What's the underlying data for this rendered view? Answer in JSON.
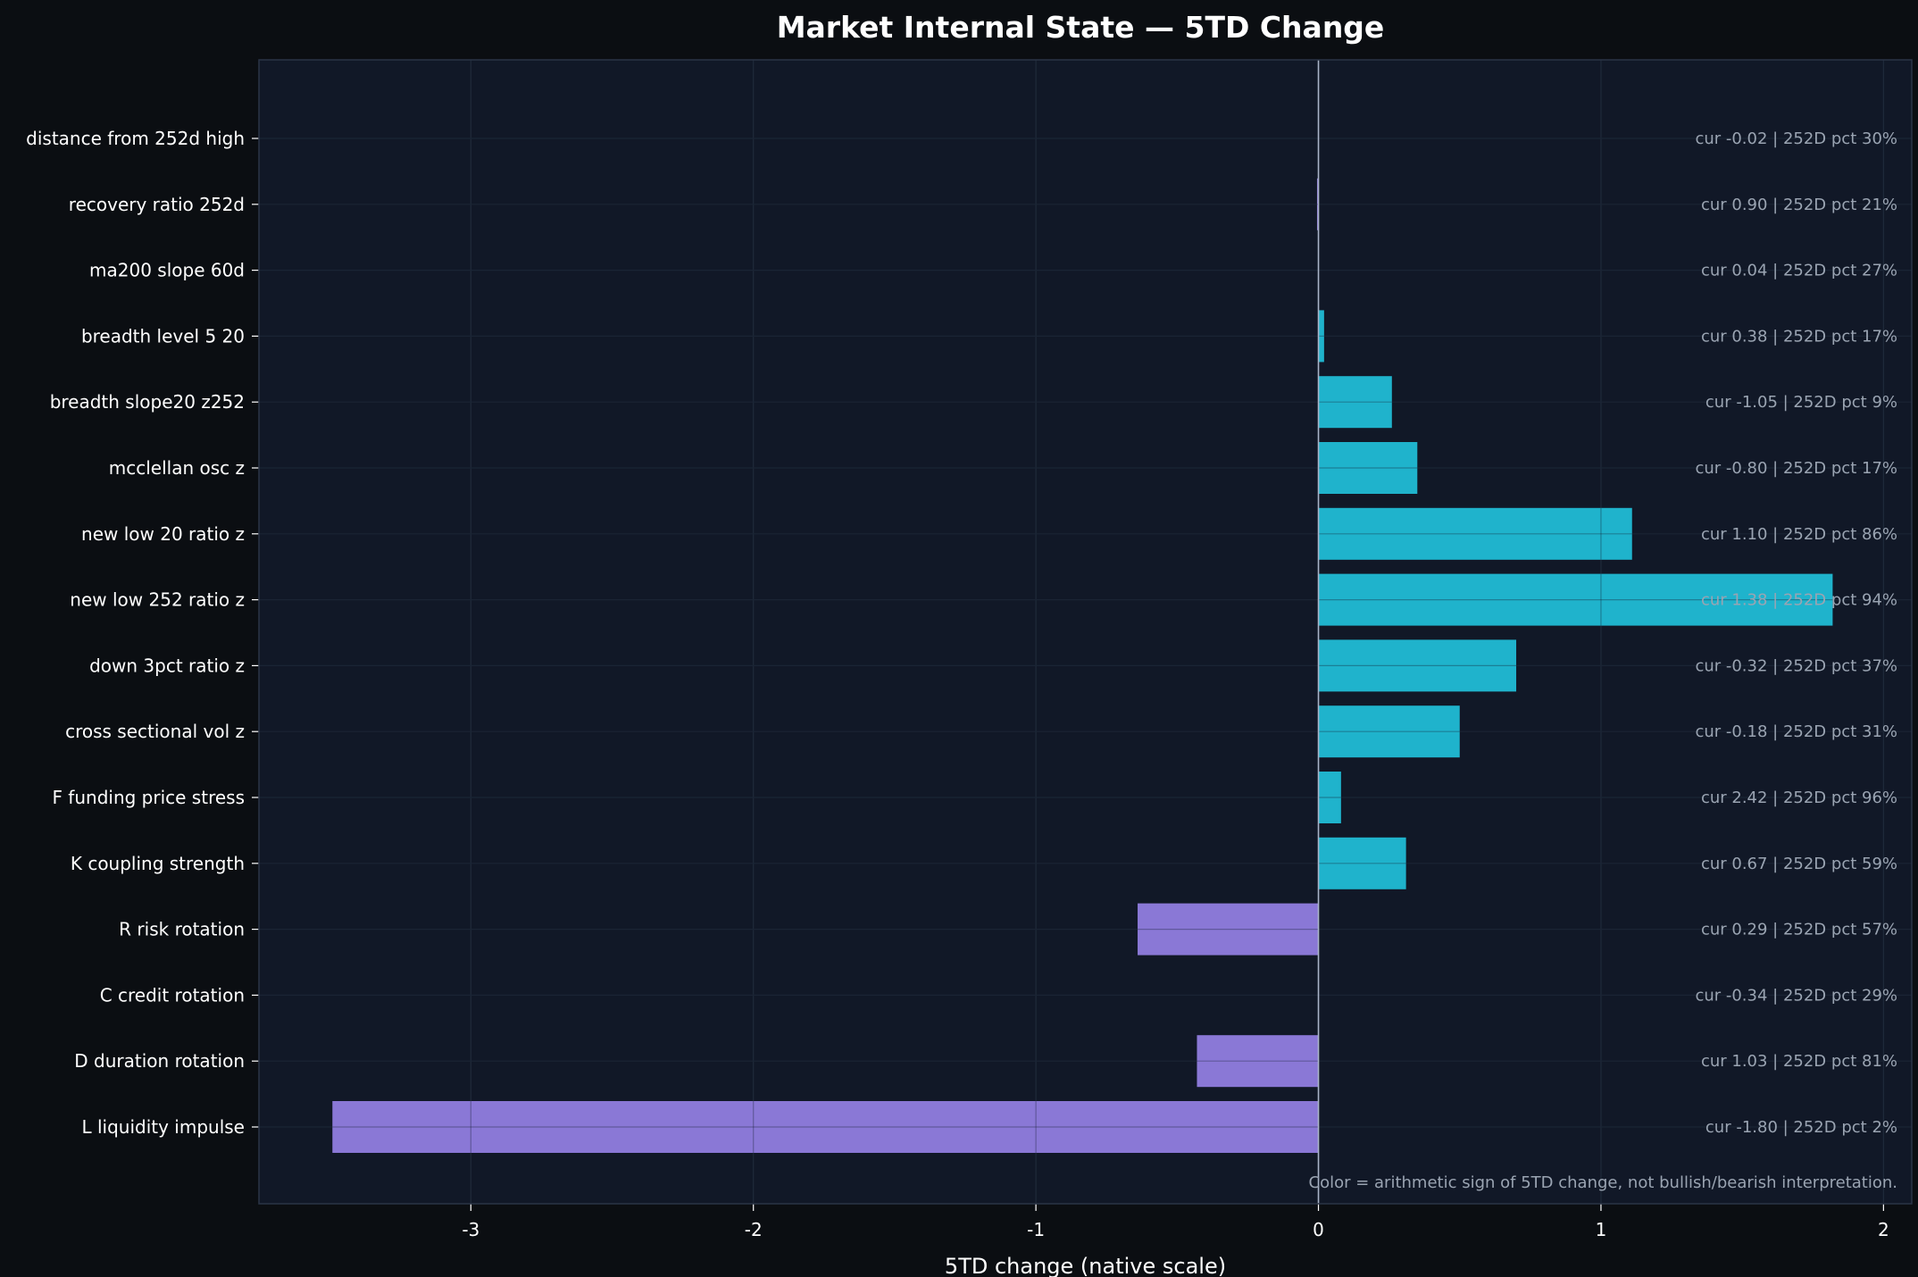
{
  "chart_data": {
    "type": "bar",
    "orientation": "horizontal",
    "title": "Market Internal State — 5TD Change",
    "xlabel": "5TD change (native scale)",
    "ylabel": "",
    "xlim": [
      -3.75,
      2.1
    ],
    "xticks": [
      -3,
      -2,
      -1,
      0,
      1,
      2
    ],
    "grid": true,
    "colors": {
      "positive": "#1fb3cc",
      "negative": "#8a78d6",
      "background": "#111827",
      "figure": "#0b0e12",
      "zero_line": "#aab4c8"
    },
    "categories": [
      "distance from 252d high",
      "recovery ratio 252d",
      "ma200 slope 60d",
      "breadth level 5 20",
      "breadth slope20 z252",
      "mcclellan osc z",
      "new low 20 ratio z",
      "new low 252 ratio z",
      "down 3pct ratio z",
      "cross sectional vol z",
      "F funding price stress",
      "K coupling strength",
      "R risk rotation",
      "C credit rotation",
      "D duration rotation",
      "L liquidity impulse"
    ],
    "values": [
      0.0,
      -0.005,
      0.0,
      0.02,
      0.26,
      0.35,
      1.11,
      1.82,
      0.7,
      0.5,
      0.08,
      0.31,
      -0.64,
      0.0,
      -0.43,
      -3.49
    ],
    "annotations": [
      "cur -0.02 | 252D pct 30%",
      "cur 0.90 | 252D pct 21%",
      "cur 0.04 | 252D pct 27%",
      "cur 0.38 | 252D pct 17%",
      "cur -1.05 | 252D pct 9%",
      "cur -0.80 | 252D pct 17%",
      "cur 1.10 | 252D pct 86%",
      "cur 1.38 | 252D pct 94%",
      "cur -0.32 | 252D pct 37%",
      "cur -0.18 | 252D pct 31%",
      "cur 2.42 | 252D pct 96%",
      "cur 0.67 | 252D pct 59%",
      "cur 0.29 | 252D pct 57%",
      "cur -0.34 | 252D pct 29%",
      "cur 1.03 | 252D pct 81%",
      "cur -1.80 | 252D pct 2%"
    ],
    "footnote": "Color = arithmetic sign of 5TD change, not bullish/bearish interpretation."
  }
}
